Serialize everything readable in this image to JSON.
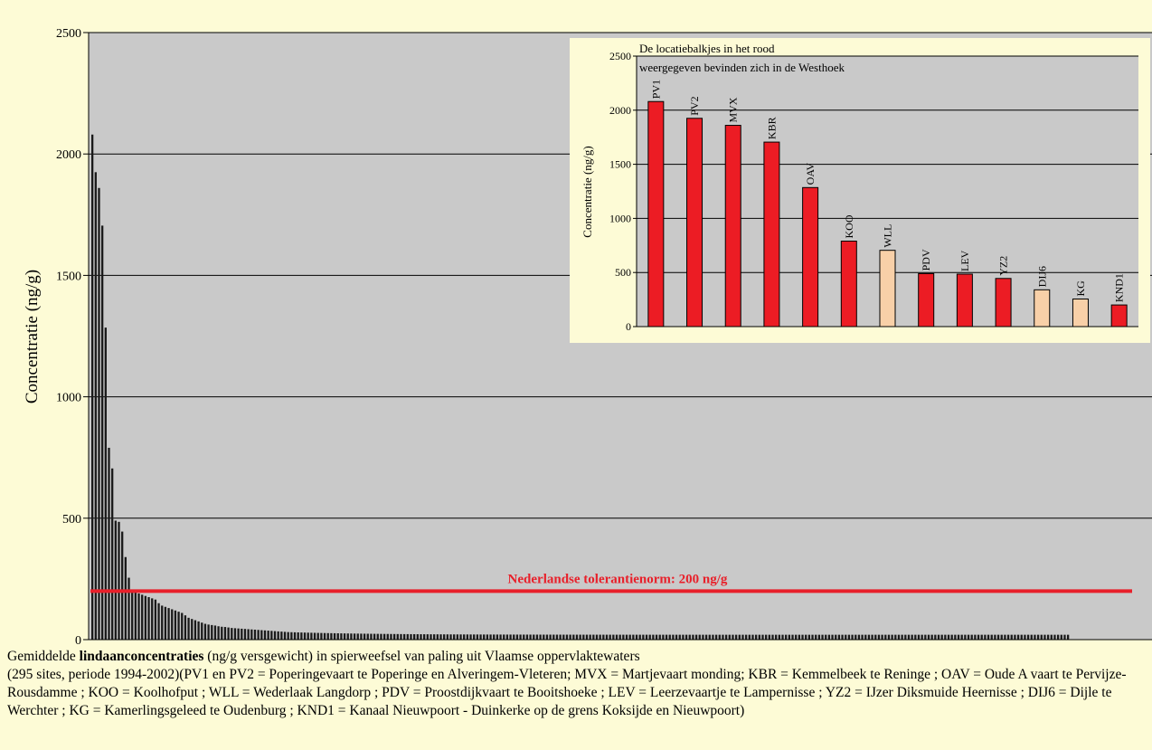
{
  "chart_data": [
    {
      "type": "bar",
      "ylabel": "Concentratie (ng/g)",
      "ylim": [
        0,
        2500
      ],
      "yticks": [
        0,
        500,
        1000,
        1500,
        2000,
        2500
      ],
      "grid": true,
      "bar_count": 295,
      "values": [
        2080,
        1925,
        1860,
        1705,
        1285,
        790,
        705,
        490,
        485,
        445,
        340,
        255,
        200,
        195,
        190,
        185,
        180,
        175,
        170,
        165,
        150,
        140,
        135,
        130,
        125,
        120,
        115,
        110,
        100,
        90,
        85,
        80,
        75,
        70,
        65,
        62,
        60,
        58,
        55,
        53,
        52,
        50,
        48,
        47,
        46,
        45,
        44,
        43,
        42,
        41,
        40,
        39,
        38,
        37,
        36,
        35,
        34,
        33,
        32,
        31
      ],
      "tail_value": 20,
      "tolerance_line": {
        "value": 200,
        "label": "Nederlandse tolerantienorm: 200 ng/g",
        "color": "#e8202a"
      },
      "colors": {
        "plot_bg": "#c9c9c9",
        "bar": "#1a1a1a"
      }
    },
    {
      "type": "bar",
      "title_lines": [
        "De locatiebalkjes in het rood",
        "weergegeven bevinden zich in de Westhoek"
      ],
      "ylabel": "Concentratie (ng/g)",
      "ylim": [
        0,
        2500
      ],
      "yticks": [
        0,
        500,
        1000,
        1500,
        2000,
        2500
      ],
      "grid": true,
      "categories": [
        "PV1",
        "PV2",
        "MVX",
        "KBR",
        "OAV",
        "KOO",
        "WLL",
        "PDV",
        "LEV",
        "YZ2",
        "DIJ6",
        "KG",
        "KND1"
      ],
      "values": [
        2080,
        1925,
        1860,
        1705,
        1285,
        790,
        705,
        490,
        485,
        445,
        340,
        255,
        200
      ],
      "westhoek": [
        true,
        true,
        true,
        true,
        true,
        true,
        false,
        true,
        true,
        true,
        false,
        false,
        true
      ],
      "colors": {
        "westhoek": "#ec1c24",
        "other": "#f8d0a8",
        "plot_bg": "#c9c9c9",
        "panel_bg": "#fdfbd6"
      }
    }
  ],
  "caption": {
    "line1_pre": "Gemiddelde ",
    "line1_bold": "lindaanconcentraties",
    "line1_post": " (ng/g versgewicht) in spierweefsel van paling uit Vlaamse oppervlaktewaters",
    "details": "(295 sites, periode 1994-2002)(PV1 en PV2  = Poperingevaart te Poperinge en Alveringem-Vleteren; MVX = Martjevaart monding; KBR = Kemmelbeek te Reninge ; OAV = Oude A vaart te Pervijze-Rousdamme ; KOO = Koolhofput ; WLL = Wederlaak Langdorp ; PDV = Proostdijkvaart te Booitshoeke ; LEV = Leerzevaartje te Lampernisse ; YZ2 = IJzer Diksmuide Heernisse ; DIJ6 = Dijle te Werchter ; KG = Kamerlingsgeleed te Oudenburg ; KND1 = Kanaal Nieuwpoort - Duinkerke op de grens Koksijde en Nieuwpoort)"
  }
}
